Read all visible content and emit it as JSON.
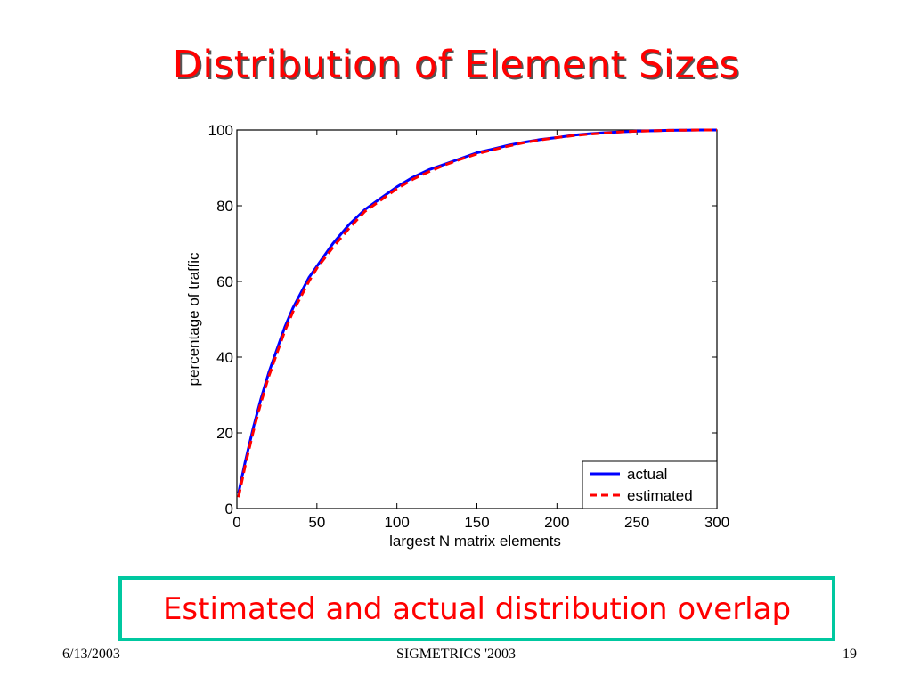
{
  "slide": {
    "title": "Distribution of Element Sizes",
    "callout": "Estimated and actual distribution overlap",
    "footer": {
      "date": "6/13/2003",
      "event": "SIGMETRICS '2003",
      "page": "19"
    }
  },
  "colors": {
    "title": "#ff0000",
    "callout_text": "#ff0000",
    "callout_border": "#00c8a0",
    "actual": "#0000ff",
    "estimated": "#ff0000"
  },
  "chart_data": {
    "type": "line",
    "title": "",
    "xlabel": "largest N matrix elements",
    "ylabel": "percentage of traffic",
    "xlim": [
      0,
      300
    ],
    "ylim": [
      0,
      100
    ],
    "xticks": [
      0,
      50,
      100,
      150,
      200,
      250,
      300
    ],
    "yticks": [
      0,
      20,
      40,
      60,
      80,
      100
    ],
    "grid": false,
    "legend_position": "bottom-right",
    "series": [
      {
        "name": "actual",
        "style": "solid",
        "color": "#0000ff",
        "x": [
          1,
          5,
          10,
          15,
          20,
          25,
          30,
          35,
          40,
          45,
          50,
          60,
          70,
          80,
          90,
          100,
          110,
          120,
          130,
          140,
          150,
          160,
          170,
          180,
          190,
          200,
          210,
          220,
          230,
          240,
          250,
          260,
          270,
          280,
          290,
          300
        ],
        "y": [
          4,
          12,
          21,
          29,
          36,
          42,
          48,
          53,
          57,
          61,
          64,
          70,
          75,
          79,
          82,
          85,
          87.5,
          89.5,
          91,
          92.5,
          94,
          95,
          96,
          96.8,
          97.5,
          98,
          98.6,
          99,
          99.3,
          99.5,
          99.7,
          99.8,
          99.9,
          99.95,
          100,
          100
        ]
      },
      {
        "name": "estimated",
        "style": "dashed",
        "color": "#ff0000",
        "x": [
          1,
          5,
          10,
          15,
          20,
          25,
          30,
          35,
          40,
          45,
          50,
          60,
          70,
          80,
          90,
          100,
          110,
          120,
          130,
          140,
          150,
          160,
          170,
          180,
          190,
          200,
          210,
          220,
          230,
          240,
          250,
          260,
          270,
          280,
          290,
          300
        ],
        "y": [
          3,
          11,
          20,
          28,
          35,
          41,
          47,
          52,
          56,
          60,
          63.5,
          69,
          74,
          78.5,
          81.5,
          84.5,
          87,
          89,
          90.8,
          92.3,
          93.7,
          94.8,
          95.8,
          96.7,
          97.4,
          98,
          98.5,
          98.9,
          99.2,
          99.5,
          99.7,
          99.8,
          99.9,
          99.95,
          100,
          100
        ]
      }
    ]
  }
}
